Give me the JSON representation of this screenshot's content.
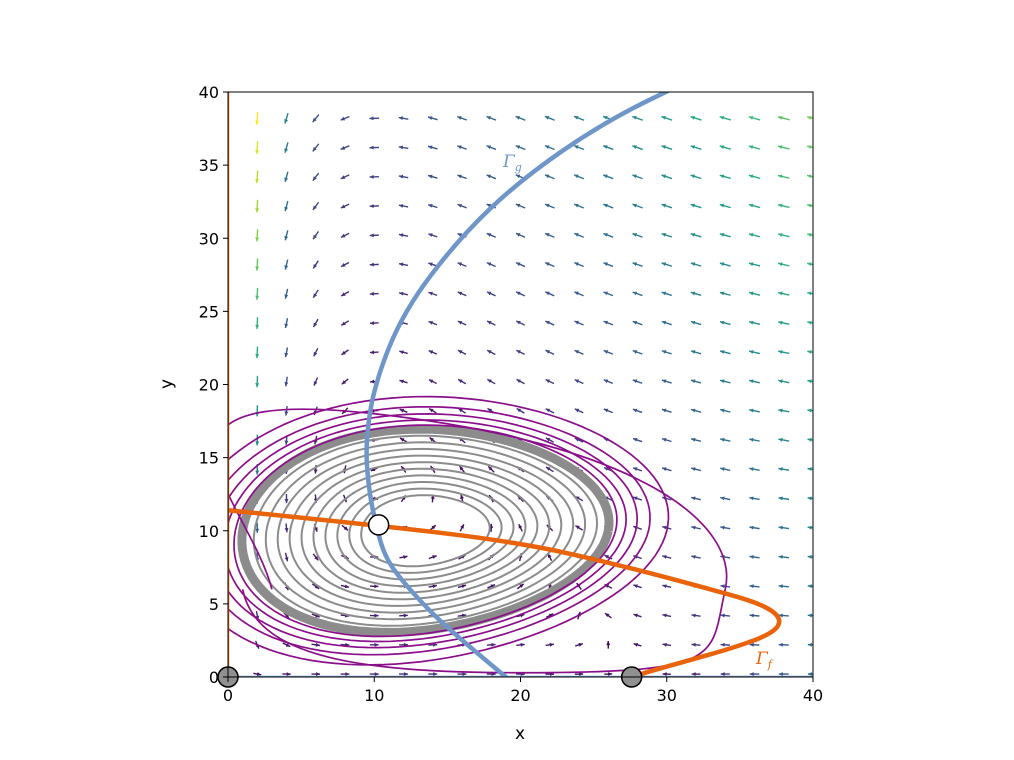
{
  "chart_data": {
    "type": "phase-portrait",
    "xlabel": "x",
    "ylabel": "y",
    "xlim": [
      0,
      40
    ],
    "ylim": [
      0,
      40
    ],
    "xticks": [
      0,
      10,
      20,
      30,
      40
    ],
    "yticks": [
      0,
      5,
      10,
      15,
      20,
      25,
      30,
      35,
      40
    ],
    "nullclines": [
      {
        "name": "Γ_f",
        "label_main": "Γ",
        "label_sub": "f",
        "color": "#e8630a",
        "points": [
          [
            0,
            11.4
          ],
          [
            10,
            10.4
          ],
          [
            20,
            9.2
          ],
          [
            27,
            7.6
          ],
          [
            33,
            6.0
          ],
          [
            36.5,
            5.0
          ],
          [
            37.9,
            4.0
          ],
          [
            37.3,
            3.0
          ],
          [
            34.6,
            2.0
          ],
          [
            31.0,
            1.0
          ],
          [
            27.5,
            0
          ],
          [
            27.2,
            -0.3
          ]
        ]
      },
      {
        "name": "Γ_g",
        "label_main": "Γ",
        "label_sub": "g",
        "color": "#6f96c9",
        "points": [
          [
            19.0,
            0
          ],
          [
            16.6,
            2
          ],
          [
            14.3,
            4
          ],
          [
            12.4,
            6
          ],
          [
            10.8,
            8
          ],
          [
            10.1,
            10.4
          ],
          [
            9.6,
            13
          ],
          [
            9.4,
            16
          ],
          [
            10.0,
            20
          ],
          [
            12.0,
            25
          ],
          [
            15.8,
            30
          ],
          [
            20.0,
            34
          ],
          [
            25.8,
            38
          ],
          [
            32.0,
            41
          ]
        ]
      }
    ],
    "axis_nullclines": [
      {
        "axis": "x=0",
        "color": "#e8630a"
      },
      {
        "axis": "y=0",
        "color": "#6f96c9"
      }
    ],
    "equilibria": [
      {
        "x": 0,
        "y": 0,
        "fill": "#909090"
      },
      {
        "x": 27.6,
        "y": 0,
        "fill": "#909090"
      },
      {
        "x": 10.3,
        "y": 10.4,
        "fill": "#ffffff"
      }
    ],
    "trajectories": {
      "outer_color": "#8b0e8b",
      "inner_color": "#8c8c8c",
      "center": [
        13.5,
        10.0
      ],
      "limit_cycle_semi_axes": [
        12.5,
        6.9
      ]
    },
    "colormap": "viridis"
  }
}
